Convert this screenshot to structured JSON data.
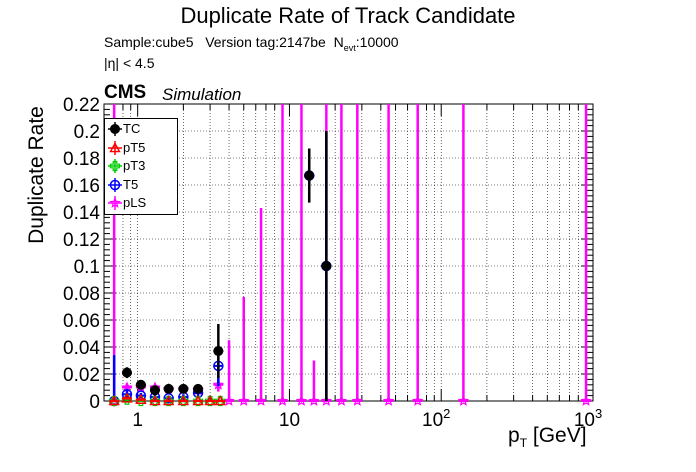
{
  "chart_data": {
    "type": "scatter",
    "title": "Duplicate Rate of Track Candidate",
    "subtitle_parts": {
      "sample": "Sample:cube5",
      "version": "Version tag:2147be",
      "nevt_prefix": "N",
      "nevt_sub": "evt",
      "nevt_value": ":10000"
    },
    "eta_text": "|η| < 4.5",
    "cms_label": "CMS",
    "simulation_label": "Simulation",
    "ylabel": "Duplicate Rate",
    "xlabel": "[GeV]",
    "xlabel_main": "p",
    "xlabel_sub": "T",
    "xscale": "log",
    "xlim": [
      0.6,
      1000
    ],
    "ylim": [
      0,
      0.22
    ],
    "grid": true,
    "legend_position": "top-left",
    "y_ticks": [
      "0",
      "0.02",
      "0.04",
      "0.06",
      "0.08",
      "0.1",
      "0.12",
      "0.14",
      "0.16",
      "0.18",
      "0.2",
      "0.22"
    ],
    "x_ticks": [
      {
        "base": "1",
        "exp": ""
      },
      {
        "base": "10",
        "exp": ""
      },
      {
        "base": "10",
        "exp": "2"
      },
      {
        "base": "10",
        "exp": "3"
      }
    ],
    "series": [
      {
        "name": "TC",
        "color": "#000000",
        "marker": "filled-circle",
        "points": [
          {
            "x": 0.85,
            "y": 0.021,
            "err": 0.004
          },
          {
            "x": 1.05,
            "y": 0.012,
            "err": 0.002
          },
          {
            "x": 1.3,
            "y": 0.008,
            "err": 0.002
          },
          {
            "x": 1.6,
            "y": 0.009,
            "err": 0.002
          },
          {
            "x": 2.0,
            "y": 0.009,
            "err": 0.002
          },
          {
            "x": 2.5,
            "y": 0.009,
            "err": 0.003
          },
          {
            "x": 3.4,
            "y": 0.037,
            "err": 0.02
          },
          {
            "x": 13.5,
            "y": 0.167,
            "err": 0.02
          },
          {
            "x": 17.5,
            "y": 0.1,
            "err": 0.1
          }
        ]
      },
      {
        "name": "pT5",
        "color": "#ff0000",
        "marker": "open-triangle",
        "points": [
          {
            "x": 0.7,
            "y": 0.0,
            "err": 0.001
          },
          {
            "x": 0.85,
            "y": 0.002,
            "err": 0.001
          },
          {
            "x": 1.05,
            "y": 0.001,
            "err": 0.001
          },
          {
            "x": 1.3,
            "y": 0.0,
            "err": 0.001
          },
          {
            "x": 1.6,
            "y": 0.0,
            "err": 0.001
          },
          {
            "x": 2.0,
            "y": 0.0,
            "err": 0.001
          },
          {
            "x": 2.5,
            "y": 0.0,
            "err": 0.001
          },
          {
            "x": 3.0,
            "y": 0.0,
            "err": 0.001
          },
          {
            "x": 3.5,
            "y": 0.0,
            "err": 0.001
          }
        ]
      },
      {
        "name": "pT3",
        "color": "#00cc00",
        "marker": "open-cross",
        "points": [
          {
            "x": 0.7,
            "y": 0.0,
            "err": 0.001
          },
          {
            "x": 0.85,
            "y": 0.001,
            "err": 0.001
          },
          {
            "x": 1.05,
            "y": 0.0,
            "err": 0.001
          },
          {
            "x": 1.3,
            "y": 0.0,
            "err": 0.001
          },
          {
            "x": 1.6,
            "y": 0.0,
            "err": 0.001
          },
          {
            "x": 2.0,
            "y": 0.0,
            "err": 0.001
          },
          {
            "x": 2.5,
            "y": 0.0,
            "err": 0.001
          },
          {
            "x": 3.0,
            "y": 0.0,
            "err": 0.001
          },
          {
            "x": 3.5,
            "y": 0.0,
            "err": 0.001
          }
        ]
      },
      {
        "name": "T5",
        "color": "#0000ff",
        "marker": "open-circle",
        "points": [
          {
            "x": 0.7,
            "y": 0.0,
            "err": 0.034
          },
          {
            "x": 0.85,
            "y": 0.005,
            "err": 0.003
          },
          {
            "x": 1.05,
            "y": 0.004,
            "err": 0.002
          },
          {
            "x": 1.3,
            "y": 0.003,
            "err": 0.002
          },
          {
            "x": 1.6,
            "y": 0.002,
            "err": 0.002
          },
          {
            "x": 2.0,
            "y": 0.003,
            "err": 0.002
          },
          {
            "x": 2.5,
            "y": 0.006,
            "err": 0.004
          },
          {
            "x": 3.4,
            "y": 0.026,
            "err": 0.015
          },
          {
            "x": 13.5,
            "y": 0.167,
            "err": 0.02
          },
          {
            "x": 17.5,
            "y": 0.1,
            "err": 0.1
          }
        ]
      },
      {
        "name": "pLS",
        "color": "#ff00ff",
        "marker": "open-star",
        "points": [
          {
            "x": 0.7,
            "y": 0.0,
            "err": 0.22
          },
          {
            "x": 0.85,
            "y": 0.01,
            "err": 0.003
          },
          {
            "x": 1.05,
            "y": 0.01,
            "err": 0.002
          },
          {
            "x": 1.3,
            "y": 0.01,
            "err": 0.002
          },
          {
            "x": 1.6,
            "y": 0.009,
            "err": 0.002
          },
          {
            "x": 2.0,
            "y": 0.009,
            "err": 0.002
          },
          {
            "x": 2.5,
            "y": 0.008,
            "err": 0.002
          },
          {
            "x": 3.4,
            "y": 0.012,
            "err": 0.005
          },
          {
            "x": 4.0,
            "y": 0.0,
            "err": 0.045
          },
          {
            "x": 5.0,
            "y": 0.0,
            "err": 0.077
          },
          {
            "x": 6.5,
            "y": 0.0,
            "err": 0.143
          },
          {
            "x": 9.0,
            "y": 0.0,
            "err": 0.22
          },
          {
            "x": 12.0,
            "y": 0.0,
            "err": 0.22
          },
          {
            "x": 14.5,
            "y": 0.0,
            "err": 0.03
          },
          {
            "x": 17.5,
            "y": 0.0,
            "err": 0.22
          },
          {
            "x": 22.0,
            "y": 0.0,
            "err": 0.22
          },
          {
            "x": 28.0,
            "y": 0.0,
            "err": 0.22
          },
          {
            "x": 45.0,
            "y": 0.0,
            "err": 0.22
          },
          {
            "x": 70.0,
            "y": 0.0,
            "err": 0.22
          },
          {
            "x": 140.0,
            "y": 0.0,
            "err": 0.22
          },
          {
            "x": 900.0,
            "y": 0.0,
            "err": 0.22
          }
        ]
      }
    ]
  }
}
